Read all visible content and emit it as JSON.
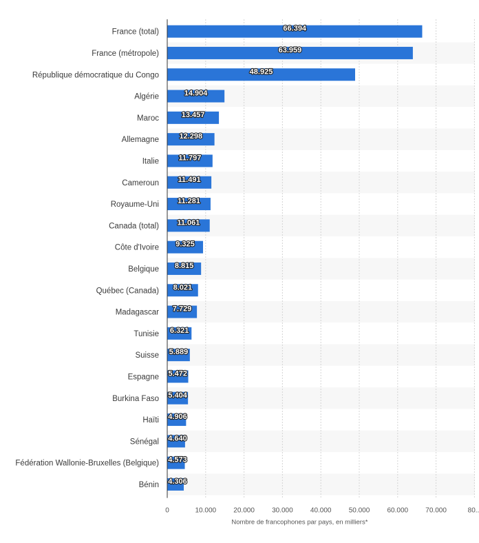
{
  "chart_data": {
    "type": "bar",
    "orientation": "horizontal",
    "categories": [
      "France (total)",
      "France (métropole)",
      "République démocratique du Congo",
      "Algérie",
      "Maroc",
      "Allemagne",
      "Italie",
      "Cameroun",
      "Royaume-Uni",
      "Canada (total)",
      "Côte d'Ivoire",
      "Belgique",
      "Québec (Canada)",
      "Madagascar",
      "Tunisie",
      "Suisse",
      "Espagne",
      "Burkina Faso",
      "Haïti",
      "Sénégal",
      "Fédération Wallonie-Bruxelles (Belgique)",
      "Bénin"
    ],
    "values": [
      66394,
      63959,
      48925,
      14904,
      13457,
      12298,
      11797,
      11491,
      11281,
      11061,
      9325,
      8815,
      8021,
      7729,
      6321,
      5889,
      5472,
      5404,
      4906,
      4640,
      4573,
      4306
    ],
    "value_labels": [
      "66.394",
      "63.959",
      "48.925",
      "14.904",
      "13.457",
      "12.298",
      "11.797",
      "11.491",
      "11.281",
      "11.061",
      "9.325",
      "8.815",
      "8.021",
      "7.729",
      "6.321",
      "5.889",
      "5.472",
      "5.404",
      "4.906",
      "4.640",
      "4.573",
      "4.306"
    ],
    "xlim": [
      0,
      80000
    ],
    "xticks": [
      0,
      10000,
      20000,
      30000,
      40000,
      50000,
      60000,
      70000,
      80000
    ],
    "xtick_labels": [
      "0",
      "10.000",
      "20.000",
      "30.000",
      "40.000",
      "50.000",
      "60.000",
      "70.000",
      "80..."
    ],
    "xlabel": "Nombre de francophones par pays, en milliers*",
    "ylabel": "",
    "title": "",
    "grid": true,
    "bar_color": "#2a75d8",
    "alt_row_color": "#f7f7f7",
    "grid_color": "#d4d4d4"
  }
}
